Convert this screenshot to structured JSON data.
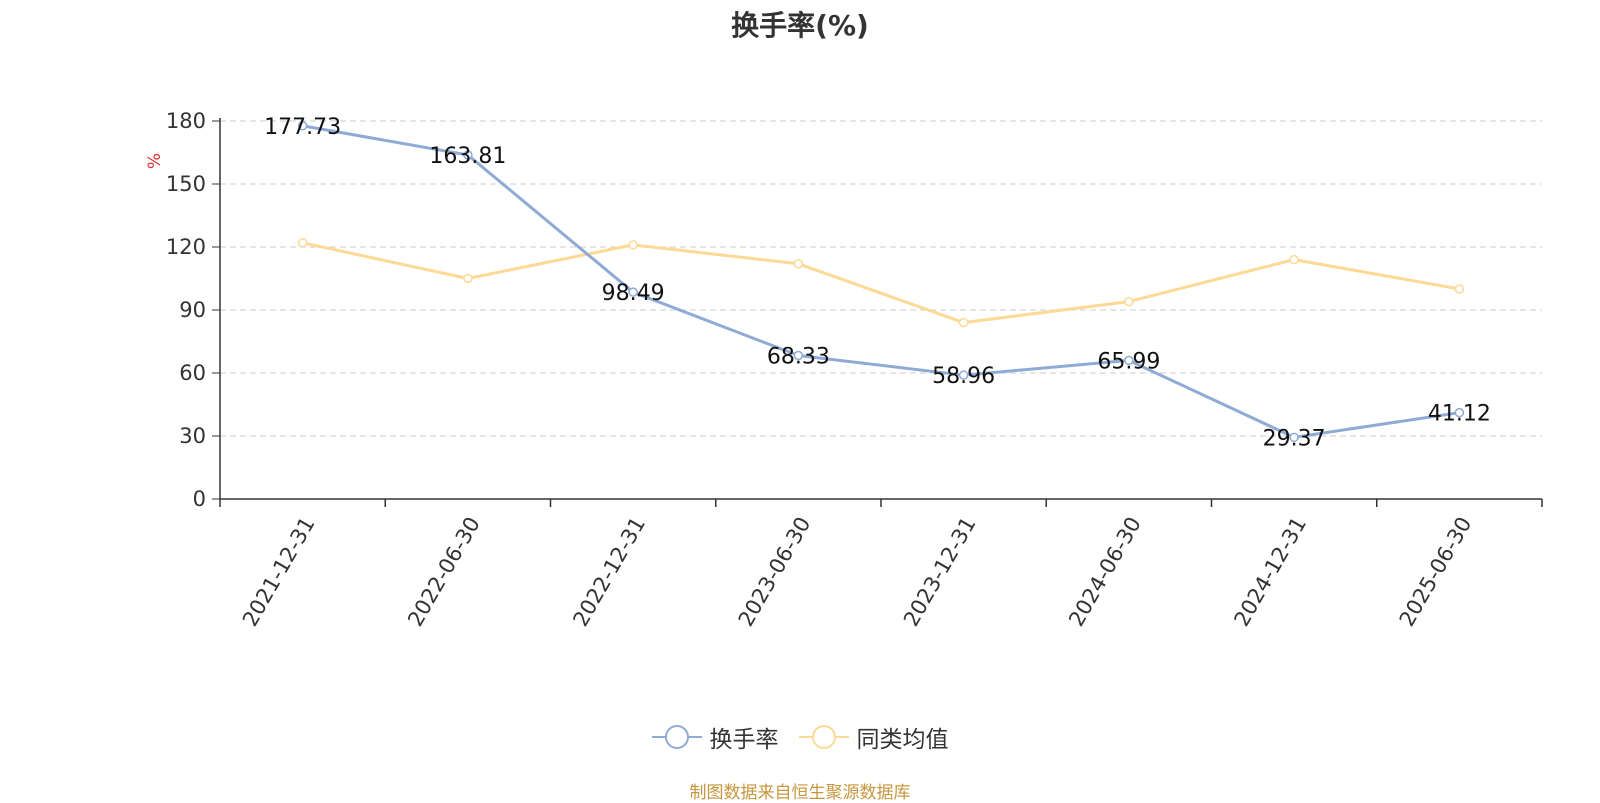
{
  "title": "换手率(%)",
  "source": "制图数据来自恒生聚源数据库",
  "chart_data": {
    "type": "line",
    "categories": [
      "2021-12-31",
      "2022-06-30",
      "2022-12-31",
      "2023-06-30",
      "2023-12-31",
      "2024-06-30",
      "2024-12-31",
      "2025-06-30"
    ],
    "series": [
      {
        "name": "换手率",
        "color": "#8eaad5",
        "values": [
          177.73,
          163.81,
          98.49,
          68.33,
          58.96,
          65.99,
          29.37,
          41.12
        ],
        "labels": [
          "177.73",
          "163.81",
          "98.49",
          "68.33",
          "58.96",
          "65.99",
          "29.37",
          "41.12"
        ]
      },
      {
        "name": "同类均值",
        "color": "#fcd994",
        "values": [
          122,
          105,
          121,
          112,
          84,
          94,
          114,
          100
        ]
      }
    ],
    "ylabel": "%",
    "ylim": [
      0,
      180
    ],
    "yticks": [
      0,
      30,
      60,
      90,
      120,
      150,
      180
    ],
    "grid": true,
    "legend": "bottom"
  }
}
